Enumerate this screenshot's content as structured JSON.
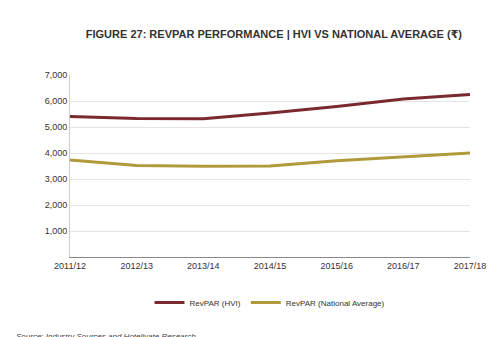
{
  "chart_data": {
    "type": "line",
    "title": "FIGURE 27: REVPAR PERFORMANCE | HVI VS NATIONAL AVERAGE (₹)",
    "categories": [
      "2011/12",
      "2012/13",
      "2013/14",
      "2014/15",
      "2015/16",
      "2016/17",
      "2017/18"
    ],
    "series": [
      {
        "name": "RevPAR (HVI)",
        "color": "#7a2a2f",
        "values": [
          5400,
          5330,
          5320,
          5540,
          5790,
          6080,
          6250
        ]
      },
      {
        "name": "RevPAR (National Average)",
        "color": "#b09a3c",
        "values": [
          3730,
          3520,
          3490,
          3500,
          3700,
          3860,
          4000
        ]
      }
    ],
    "ylim": [
      0,
      7000
    ],
    "yticks": [
      {
        "value": 1000,
        "label": "1,000"
      },
      {
        "value": 2000,
        "label": "2,000"
      },
      {
        "value": 3000,
        "label": "3,000"
      },
      {
        "value": 4000,
        "label": "4,000"
      },
      {
        "value": 5000,
        "label": "5,000"
      },
      {
        "value": 6000,
        "label": "6,000"
      },
      {
        "value": 7000,
        "label": "7,000"
      }
    ],
    "grid": true,
    "legend": "bottom",
    "annotations": [
      "Source: Industry Sources and Hotelivate Research"
    ]
  }
}
